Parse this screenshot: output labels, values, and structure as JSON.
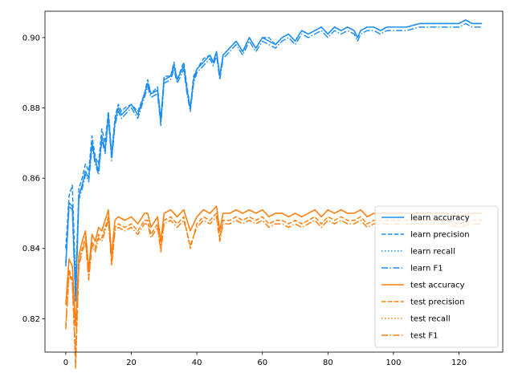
{
  "chart_data": {
    "type": "line",
    "title": "",
    "xlabel": "",
    "ylabel": "",
    "xlim": [
      -6.35,
      133.35
    ],
    "ylim": [
      0.8105,
      0.9075
    ],
    "xticks": [
      0,
      20,
      40,
      60,
      80,
      100,
      120
    ],
    "yticks": [
      0.82,
      0.84,
      0.86,
      0.88,
      0.9
    ],
    "ytick_labels": [
      "0.82",
      "0.84",
      "0.86",
      "0.88",
      "0.90"
    ],
    "grid": false,
    "legend_position": "lower-right",
    "colors": {
      "learn": "#1f8ff0",
      "test": "#ff7f0e"
    },
    "series": [
      {
        "name": "learn accuracy",
        "group": "learn",
        "style": "solid",
        "x": [
          0,
          1,
          2,
          3,
          4,
          5,
          6,
          7,
          8,
          9,
          10,
          11,
          12,
          13,
          14,
          15,
          16,
          17,
          18,
          20,
          22,
          24,
          25,
          26,
          28,
          29,
          30,
          32,
          33,
          34,
          36,
          37,
          38,
          39,
          40,
          42,
          44,
          45,
          46,
          47,
          48,
          50,
          52,
          54,
          56,
          58,
          60,
          62,
          64,
          66,
          68,
          70,
          72,
          74,
          76,
          78,
          80,
          82,
          84,
          86,
          88,
          89,
          90,
          92,
          94,
          96,
          98,
          100,
          104,
          108,
          112,
          116,
          120,
          122,
          124,
          127
        ],
        "y": [
          0.835,
          0.853,
          0.852,
          0.826,
          0.855,
          0.858,
          0.862,
          0.86,
          0.87,
          0.865,
          0.862,
          0.872,
          0.868,
          0.878,
          0.866,
          0.876,
          0.88,
          0.878,
          0.879,
          0.881,
          0.878,
          0.884,
          0.887,
          0.884,
          0.885,
          0.876,
          0.888,
          0.889,
          0.892,
          0.888,
          0.892,
          0.885,
          0.88,
          0.888,
          0.891,
          0.893,
          0.895,
          0.893,
          0.896,
          0.889,
          0.895,
          0.897,
          0.899,
          0.896,
          0.9,
          0.897,
          0.9,
          0.899,
          0.898,
          0.9,
          0.901,
          0.899,
          0.902,
          0.901,
          0.902,
          0.903,
          0.901,
          0.903,
          0.902,
          0.903,
          0.902,
          0.9,
          0.902,
          0.903,
          0.903,
          0.902,
          0.903,
          0.903,
          0.903,
          0.904,
          0.904,
          0.904,
          0.904,
          0.905,
          0.904,
          0.904
        ]
      },
      {
        "name": "learn precision",
        "group": "learn",
        "style": "dashed",
        "x": [
          0,
          1,
          2,
          3,
          4,
          5,
          6,
          7,
          8,
          9,
          10,
          11,
          12,
          13,
          14,
          15,
          16,
          17,
          18,
          20,
          22,
          24,
          25,
          26,
          28,
          29,
          30,
          32,
          33,
          34,
          36,
          37,
          38,
          39,
          40,
          42,
          44,
          45,
          46,
          47,
          48,
          50,
          52,
          54,
          56,
          58,
          60,
          62,
          64,
          66,
          68,
          70,
          72,
          74,
          76,
          78,
          80,
          82,
          84,
          86,
          88,
          89,
          90,
          92,
          94,
          96,
          98,
          100,
          104,
          108,
          112,
          116,
          120,
          122,
          124,
          127
        ],
        "y": [
          0.84,
          0.855,
          0.858,
          0.83,
          0.857,
          0.86,
          0.864,
          0.862,
          0.872,
          0.866,
          0.864,
          0.874,
          0.87,
          0.879,
          0.867,
          0.877,
          0.881,
          0.879,
          0.88,
          0.881,
          0.879,
          0.884,
          0.888,
          0.884,
          0.886,
          0.877,
          0.889,
          0.889,
          0.893,
          0.888,
          0.893,
          0.886,
          0.88,
          0.889,
          0.891,
          0.894,
          0.895,
          0.893,
          0.896,
          0.889,
          0.895,
          0.897,
          0.899,
          0.896,
          0.9,
          0.897,
          0.9,
          0.9,
          0.898,
          0.9,
          0.901,
          0.899,
          0.902,
          0.901,
          0.902,
          0.903,
          0.901,
          0.903,
          0.902,
          0.903,
          0.902,
          0.9,
          0.902,
          0.903,
          0.903,
          0.902,
          0.903,
          0.903,
          0.903,
          0.904,
          0.904,
          0.904,
          0.904,
          0.905,
          0.904,
          0.904
        ]
      },
      {
        "name": "learn recall",
        "group": "learn",
        "style": "dotted",
        "x": [
          0,
          1,
          2,
          3,
          4,
          5,
          6,
          7,
          8,
          9,
          10,
          11,
          12,
          13,
          14,
          15,
          16,
          17,
          18,
          20,
          22,
          24,
          25,
          26,
          28,
          29,
          30,
          32,
          33,
          34,
          36,
          37,
          38,
          39,
          40,
          42,
          44,
          45,
          46,
          47,
          48,
          50,
          52,
          54,
          56,
          58,
          60,
          62,
          64,
          66,
          68,
          70,
          72,
          74,
          76,
          78,
          80,
          82,
          84,
          86,
          88,
          89,
          90,
          92,
          94,
          96,
          98,
          100,
          104,
          108,
          112,
          116,
          120,
          122,
          124,
          127
        ],
        "y": [
          0.835,
          0.853,
          0.852,
          0.826,
          0.855,
          0.858,
          0.862,
          0.86,
          0.87,
          0.865,
          0.862,
          0.872,
          0.868,
          0.878,
          0.866,
          0.876,
          0.88,
          0.878,
          0.879,
          0.881,
          0.878,
          0.884,
          0.887,
          0.884,
          0.885,
          0.876,
          0.888,
          0.889,
          0.892,
          0.888,
          0.892,
          0.885,
          0.88,
          0.888,
          0.891,
          0.893,
          0.895,
          0.893,
          0.896,
          0.889,
          0.895,
          0.897,
          0.899,
          0.896,
          0.9,
          0.897,
          0.9,
          0.899,
          0.898,
          0.9,
          0.901,
          0.899,
          0.902,
          0.901,
          0.902,
          0.903,
          0.901,
          0.903,
          0.902,
          0.903,
          0.902,
          0.9,
          0.902,
          0.903,
          0.903,
          0.902,
          0.903,
          0.903,
          0.903,
          0.904,
          0.904,
          0.904,
          0.904,
          0.905,
          0.904,
          0.904
        ]
      },
      {
        "name": "learn F1",
        "group": "learn",
        "style": "dashdot",
        "x": [
          0,
          1,
          2,
          3,
          4,
          5,
          6,
          7,
          8,
          9,
          10,
          11,
          12,
          13,
          14,
          15,
          16,
          17,
          18,
          20,
          22,
          24,
          25,
          26,
          28,
          29,
          30,
          32,
          33,
          34,
          36,
          37,
          38,
          39,
          40,
          42,
          44,
          45,
          46,
          47,
          48,
          50,
          52,
          54,
          56,
          58,
          60,
          62,
          64,
          66,
          68,
          70,
          72,
          74,
          76,
          78,
          80,
          82,
          84,
          86,
          88,
          89,
          90,
          92,
          94,
          96,
          98,
          100,
          104,
          108,
          112,
          116,
          120,
          122,
          124,
          127
        ],
        "y": [
          0.836,
          0.852,
          0.851,
          0.825,
          0.854,
          0.857,
          0.861,
          0.859,
          0.869,
          0.864,
          0.861,
          0.871,
          0.867,
          0.877,
          0.865,
          0.875,
          0.879,
          0.877,
          0.878,
          0.88,
          0.877,
          0.883,
          0.886,
          0.883,
          0.884,
          0.875,
          0.887,
          0.888,
          0.891,
          0.887,
          0.891,
          0.884,
          0.879,
          0.887,
          0.89,
          0.892,
          0.894,
          0.892,
          0.895,
          0.888,
          0.894,
          0.896,
          0.898,
          0.895,
          0.899,
          0.896,
          0.899,
          0.898,
          0.897,
          0.899,
          0.9,
          0.898,
          0.901,
          0.9,
          0.901,
          0.902,
          0.9,
          0.902,
          0.901,
          0.902,
          0.901,
          0.899,
          0.901,
          0.902,
          0.902,
          0.901,
          0.902,
          0.902,
          0.902,
          0.903,
          0.903,
          0.903,
          0.903,
          0.904,
          0.903,
          0.903
        ]
      },
      {
        "name": "test accuracy",
        "group": "test",
        "style": "solid",
        "x": [
          0,
          1,
          2,
          3,
          4,
          5,
          6,
          7,
          8,
          9,
          10,
          11,
          12,
          13,
          14,
          15,
          16,
          18,
          20,
          22,
          24,
          25,
          26,
          28,
          29,
          30,
          32,
          34,
          36,
          38,
          40,
          42,
          44,
          46,
          47,
          48,
          50,
          52,
          54,
          56,
          58,
          60,
          62,
          64,
          66,
          68,
          70,
          72,
          74,
          76,
          78,
          80,
          82,
          84,
          86,
          88,
          90,
          92,
          94,
          96,
          98,
          100,
          104,
          108,
          112,
          116,
          120,
          124,
          127
        ],
        "y": [
          0.824,
          0.837,
          0.835,
          0.818,
          0.838,
          0.842,
          0.845,
          0.834,
          0.844,
          0.842,
          0.846,
          0.845,
          0.848,
          0.851,
          0.838,
          0.848,
          0.849,
          0.848,
          0.849,
          0.847,
          0.85,
          0.85,
          0.846,
          0.849,
          0.842,
          0.85,
          0.851,
          0.849,
          0.851,
          0.845,
          0.849,
          0.851,
          0.85,
          0.852,
          0.845,
          0.85,
          0.85,
          0.851,
          0.85,
          0.851,
          0.85,
          0.851,
          0.849,
          0.85,
          0.85,
          0.849,
          0.85,
          0.849,
          0.85,
          0.851,
          0.849,
          0.851,
          0.85,
          0.851,
          0.85,
          0.85,
          0.851,
          0.849,
          0.85,
          0.85,
          0.85,
          0.85,
          0.85,
          0.85,
          0.85,
          0.85,
          0.849,
          0.85,
          0.85
        ]
      },
      {
        "name": "test precision",
        "group": "test",
        "style": "dashed",
        "x": [
          0,
          1,
          2,
          3,
          4,
          5,
          6,
          7,
          8,
          9,
          10,
          11,
          12,
          13,
          14,
          15,
          16,
          18,
          20,
          22,
          24,
          25,
          26,
          28,
          29,
          30,
          32,
          34,
          36,
          38,
          40,
          42,
          44,
          46,
          47,
          48,
          50,
          52,
          54,
          56,
          58,
          60,
          62,
          64,
          66,
          68,
          70,
          72,
          74,
          76,
          78,
          80,
          82,
          84,
          86,
          88,
          90,
          92,
          94,
          96,
          98,
          100,
          104,
          108,
          112,
          116,
          120,
          124,
          127
        ],
        "y": [
          0.818,
          0.834,
          0.831,
          0.806,
          0.836,
          0.84,
          0.843,
          0.832,
          0.842,
          0.84,
          0.844,
          0.843,
          0.846,
          0.849,
          0.836,
          0.846,
          0.847,
          0.846,
          0.847,
          0.845,
          0.848,
          0.848,
          0.844,
          0.847,
          0.84,
          0.848,
          0.849,
          0.847,
          0.849,
          0.84,
          0.847,
          0.849,
          0.848,
          0.85,
          0.843,
          0.848,
          0.848,
          0.849,
          0.848,
          0.849,
          0.848,
          0.849,
          0.847,
          0.848,
          0.848,
          0.847,
          0.848,
          0.847,
          0.848,
          0.849,
          0.847,
          0.849,
          0.848,
          0.849,
          0.848,
          0.848,
          0.849,
          0.847,
          0.848,
          0.848,
          0.848,
          0.848,
          0.848,
          0.848,
          0.848,
          0.848,
          0.847,
          0.848,
          0.848
        ]
      },
      {
        "name": "test recall",
        "group": "test",
        "style": "dotted",
        "x": [
          0,
          1,
          2,
          3,
          4,
          5,
          6,
          7,
          8,
          9,
          10,
          11,
          12,
          13,
          14,
          15,
          16,
          18,
          20,
          22,
          24,
          25,
          26,
          28,
          29,
          30,
          32,
          34,
          36,
          38,
          40,
          42,
          44,
          46,
          47,
          48,
          50,
          52,
          54,
          56,
          58,
          60,
          62,
          64,
          66,
          68,
          70,
          72,
          74,
          76,
          78,
          80,
          82,
          84,
          86,
          88,
          90,
          92,
          94,
          96,
          98,
          100,
          104,
          108,
          112,
          116,
          120,
          124,
          127
        ],
        "y": [
          0.824,
          0.837,
          0.835,
          0.818,
          0.838,
          0.842,
          0.845,
          0.834,
          0.844,
          0.842,
          0.846,
          0.845,
          0.848,
          0.851,
          0.838,
          0.848,
          0.849,
          0.848,
          0.849,
          0.847,
          0.85,
          0.85,
          0.846,
          0.849,
          0.842,
          0.85,
          0.851,
          0.849,
          0.851,
          0.845,
          0.849,
          0.851,
          0.85,
          0.852,
          0.845,
          0.85,
          0.85,
          0.851,
          0.85,
          0.851,
          0.85,
          0.851,
          0.849,
          0.85,
          0.85,
          0.849,
          0.85,
          0.849,
          0.85,
          0.851,
          0.849,
          0.851,
          0.85,
          0.851,
          0.85,
          0.85,
          0.851,
          0.849,
          0.85,
          0.85,
          0.85,
          0.85,
          0.85,
          0.85,
          0.85,
          0.85,
          0.849,
          0.85,
          0.85
        ]
      },
      {
        "name": "test F1",
        "group": "test",
        "style": "dashdot",
        "x": [
          0,
          1,
          2,
          3,
          4,
          5,
          6,
          7,
          8,
          9,
          10,
          11,
          12,
          13,
          14,
          15,
          16,
          18,
          20,
          22,
          24,
          25,
          26,
          28,
          29,
          30,
          32,
          34,
          36,
          38,
          40,
          42,
          44,
          46,
          47,
          48,
          50,
          52,
          54,
          56,
          58,
          60,
          62,
          64,
          66,
          68,
          70,
          72,
          74,
          76,
          78,
          80,
          82,
          84,
          86,
          88,
          90,
          92,
          94,
          96,
          98,
          100,
          104,
          108,
          112,
          116,
          120,
          124,
          127
        ],
        "y": [
          0.817,
          0.833,
          0.83,
          0.81,
          0.835,
          0.839,
          0.842,
          0.831,
          0.841,
          0.839,
          0.843,
          0.842,
          0.845,
          0.848,
          0.835,
          0.845,
          0.846,
          0.845,
          0.846,
          0.844,
          0.847,
          0.847,
          0.843,
          0.846,
          0.839,
          0.847,
          0.848,
          0.846,
          0.848,
          0.841,
          0.846,
          0.848,
          0.847,
          0.849,
          0.842,
          0.847,
          0.847,
          0.848,
          0.847,
          0.848,
          0.847,
          0.848,
          0.846,
          0.847,
          0.847,
          0.846,
          0.847,
          0.846,
          0.847,
          0.848,
          0.846,
          0.848,
          0.847,
          0.848,
          0.847,
          0.847,
          0.848,
          0.846,
          0.847,
          0.847,
          0.847,
          0.847,
          0.847,
          0.847,
          0.847,
          0.847,
          0.846,
          0.847,
          0.847
        ]
      }
    ]
  }
}
